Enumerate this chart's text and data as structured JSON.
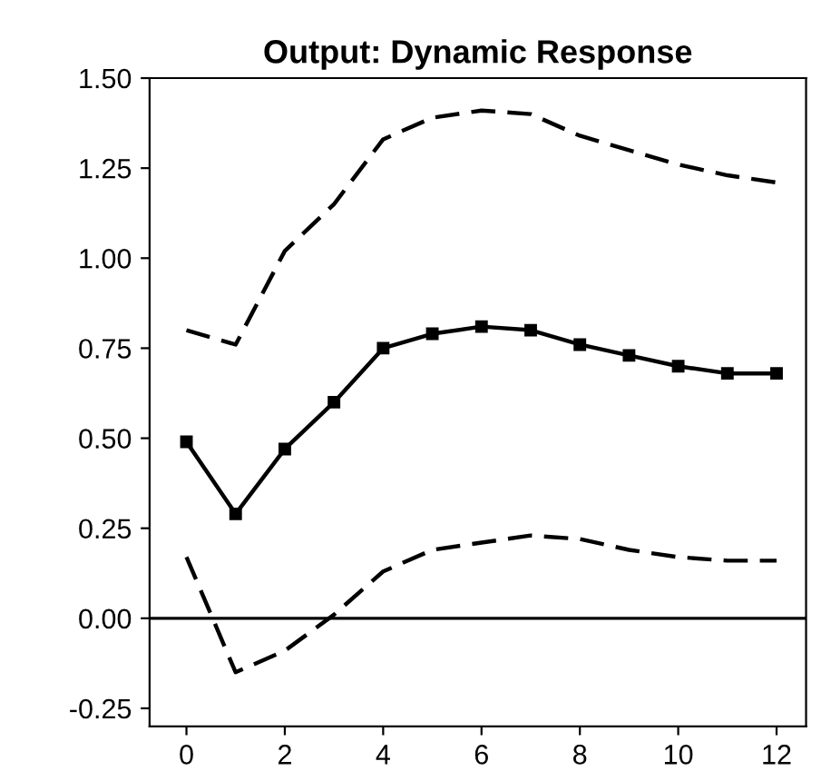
{
  "chart_data": {
    "type": "line",
    "title": "Output: Dynamic Response",
    "x": [
      0,
      1,
      2,
      3,
      4,
      5,
      6,
      7,
      8,
      9,
      10,
      11,
      12
    ],
    "series": [
      {
        "color": "#000000",
        "line_style": "solid",
        "marker": "square",
        "values": [
          0.49,
          0.29,
          0.47,
          0.6,
          0.75,
          0.79,
          0.81,
          0.8,
          0.76,
          0.73,
          0.7,
          0.68,
          0.68
        ]
      },
      {
        "color": "#000000",
        "line_style": "dashed",
        "marker": "none",
        "values": [
          0.8,
          0.76,
          1.02,
          1.15,
          1.33,
          1.39,
          1.41,
          1.4,
          1.34,
          1.3,
          1.26,
          1.23,
          1.21
        ]
      },
      {
        "color": "#000000",
        "line_style": "dashed",
        "marker": "none",
        "values": [
          0.17,
          -0.15,
          -0.09,
          0.01,
          0.13,
          0.19,
          0.21,
          0.23,
          0.22,
          0.19,
          0.17,
          0.16,
          0.16
        ]
      }
    ],
    "xlim": [
      -0.75,
      12.6
    ],
    "ylim": [
      -0.3,
      1.5
    ],
    "xticks": [
      0,
      2,
      4,
      6,
      8,
      10,
      12
    ],
    "yticks": [
      {
        "value": -0.25,
        "label": "-0.25"
      },
      {
        "value": 0,
        "label": "0.00"
      },
      {
        "value": 0.25,
        "label": "0.25"
      },
      {
        "value": 0.5,
        "label": "0.50"
      },
      {
        "value": 0.75,
        "label": "0.75"
      },
      {
        "value": 1.0,
        "label": "1.00"
      },
      {
        "value": 1.25,
        "label": "1.25"
      },
      {
        "value": 1.5,
        "label": "1.50"
      }
    ],
    "ref_lines": [
      {
        "axis": "y",
        "value": 0,
        "color": "#000000",
        "line_style": "solid"
      }
    ],
    "grid": false
  }
}
